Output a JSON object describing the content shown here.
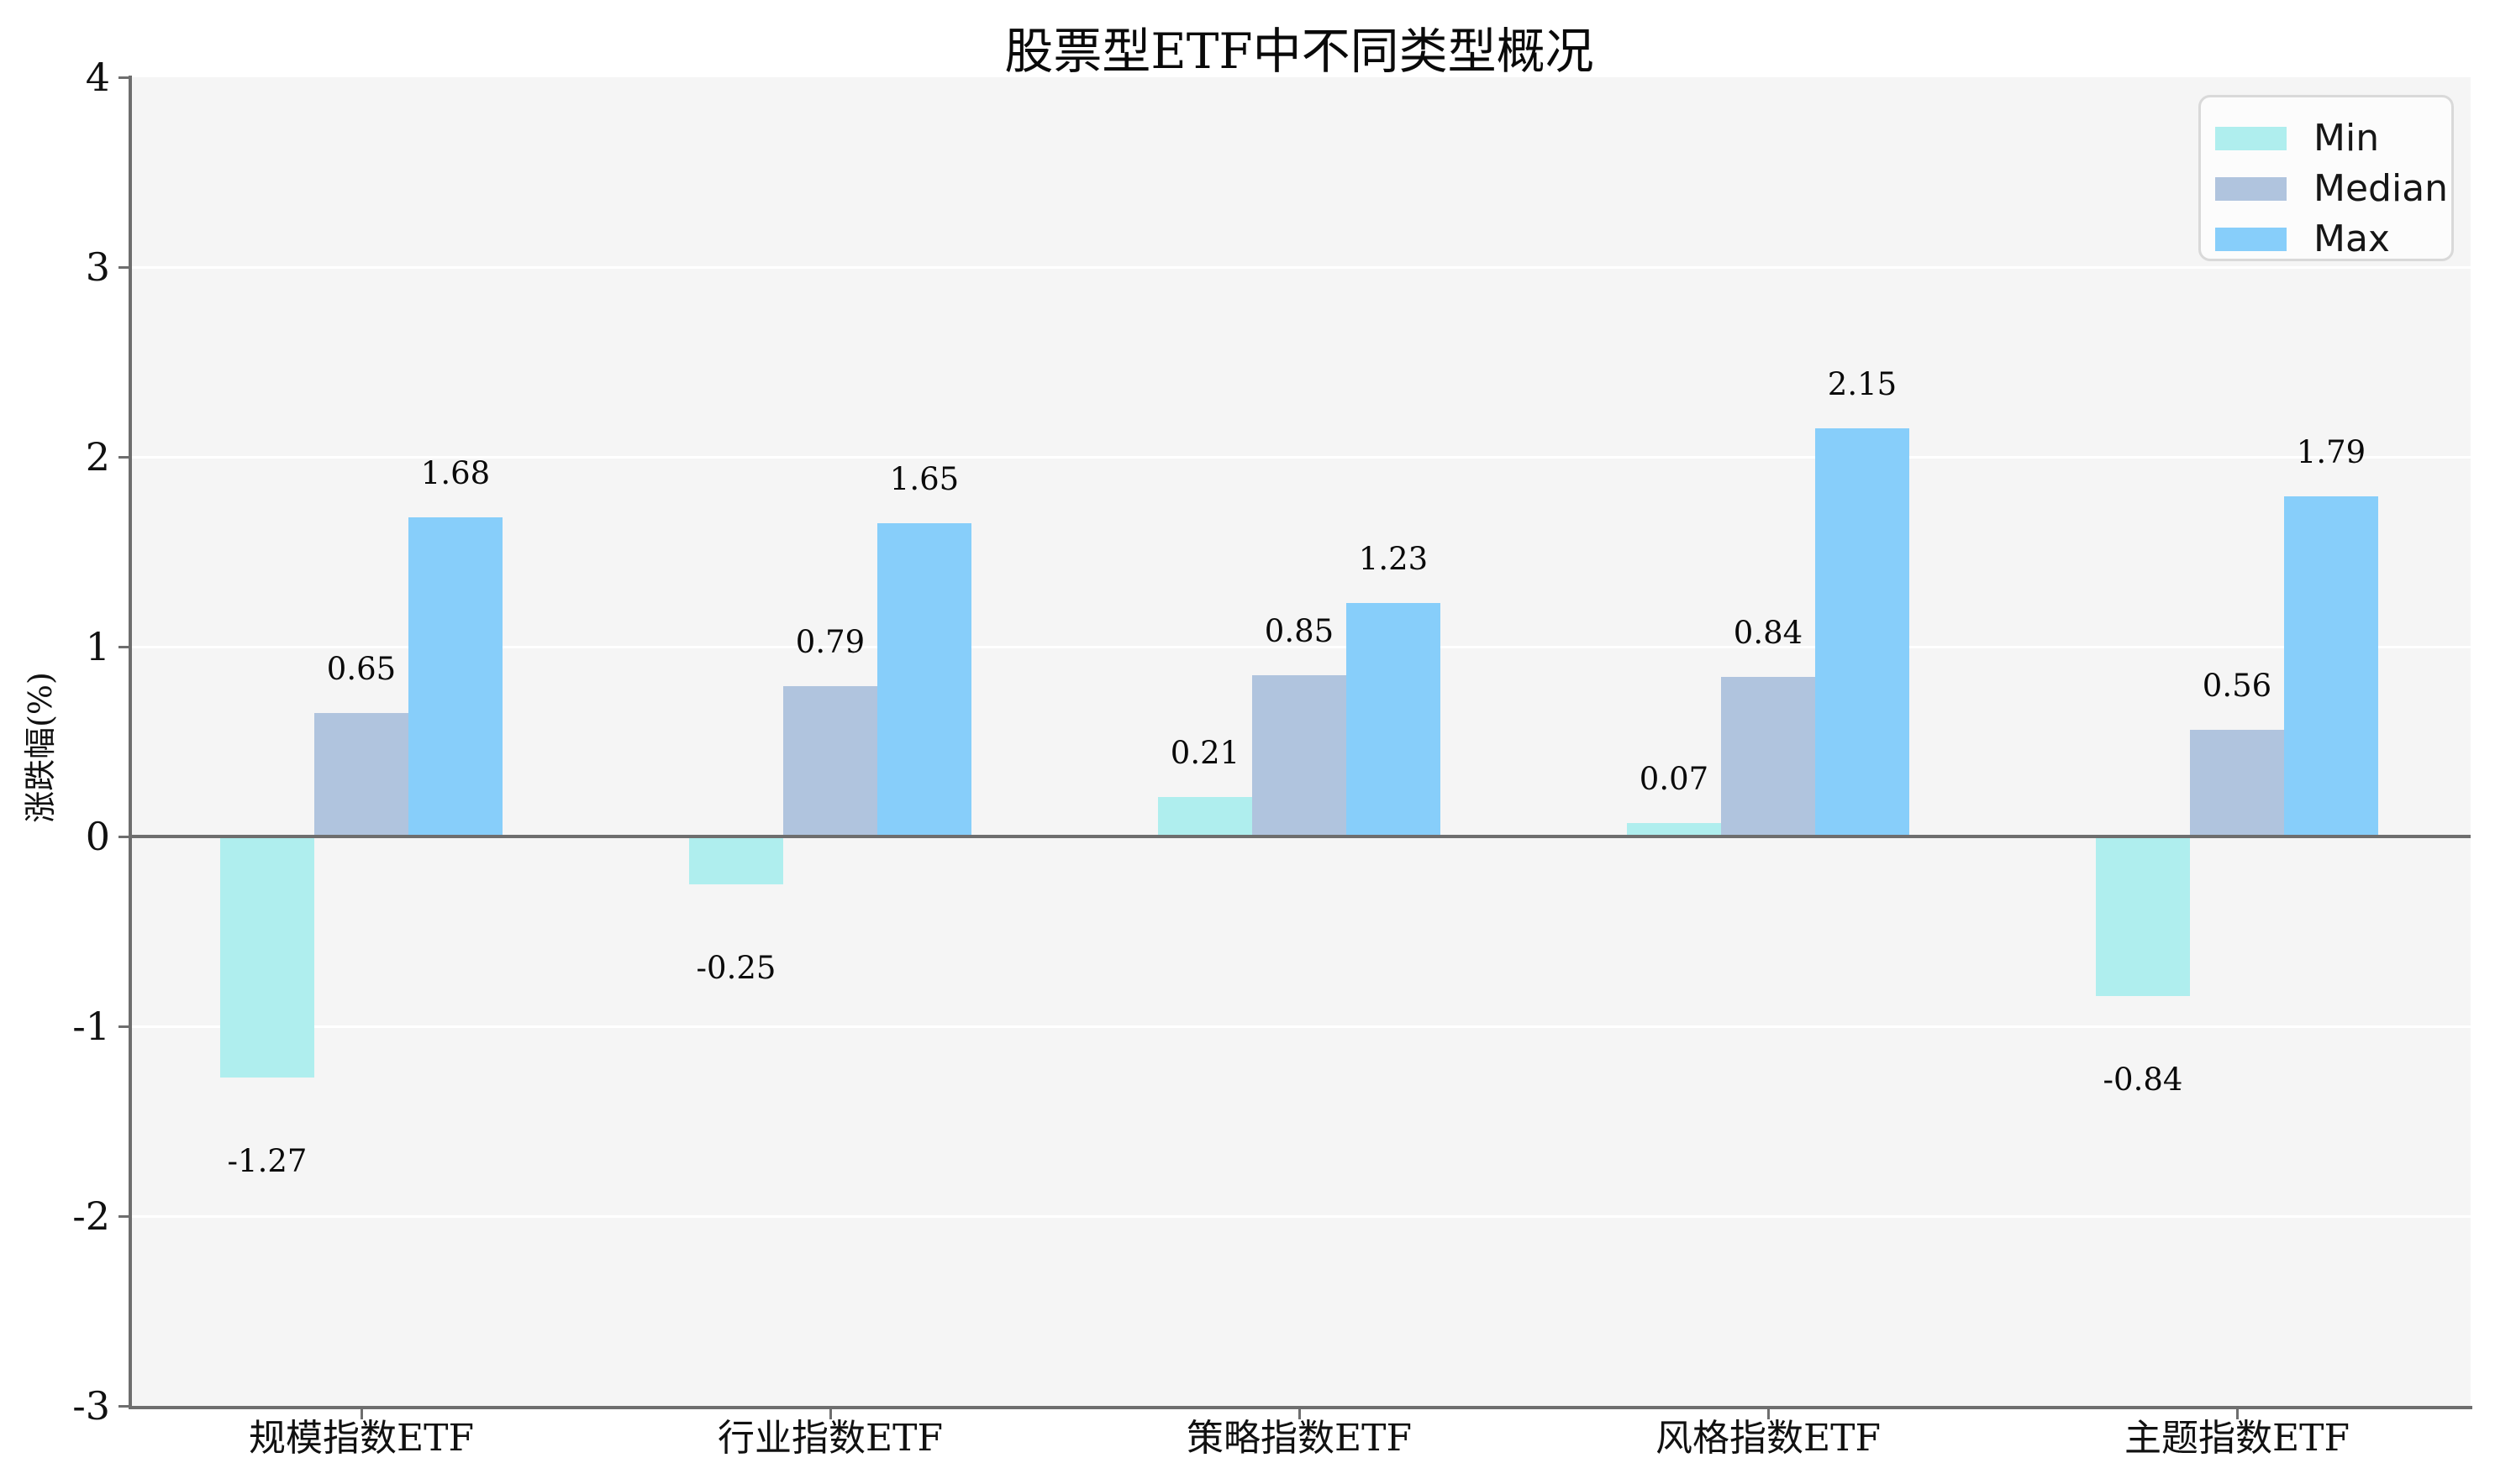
{
  "chart_data": {
    "type": "bar",
    "title": "股票型ETF中不同类型概况",
    "ylabel": "涨跌幅(%)",
    "xlabel": "",
    "categories": [
      "规模指数ETF",
      "行业指数ETF",
      "策略指数ETF",
      "风格指数ETF",
      "主题指数ETF"
    ],
    "series": [
      {
        "name": "Min",
        "color": "#afeeee",
        "values": [
          -1.27,
          -0.25,
          0.21,
          0.07,
          -0.84
        ]
      },
      {
        "name": "Median",
        "color": "#b0c4de",
        "values": [
          0.65,
          0.79,
          0.85,
          0.84,
          0.56
        ]
      },
      {
        "name": "Max",
        "color": "#87cefa",
        "values": [
          1.68,
          1.65,
          1.23,
          2.15,
          1.79
        ]
      }
    ],
    "ylim": [
      -3,
      4
    ],
    "yticks": [
      4,
      3,
      2,
      1,
      0,
      -1,
      -2,
      -3
    ],
    "grid": "horizontal white lines",
    "zero_line": true,
    "value_labels": true,
    "legend_position": "top-right",
    "legend_labels": [
      "Min",
      "Median",
      "Max"
    ]
  },
  "colors": {
    "figure_bg": "#ffffff",
    "plot_bg": "#f5f5f5",
    "gridline": "#ffffff",
    "axis": "#6e6e6e",
    "min_bar": "#afeeee",
    "median_bar": "#b0c4de",
    "max_bar": "#87cefa",
    "legend_bg": "#fcfcfc",
    "legend_border": "#d9d9d9",
    "text": "#0a0a0a"
  }
}
